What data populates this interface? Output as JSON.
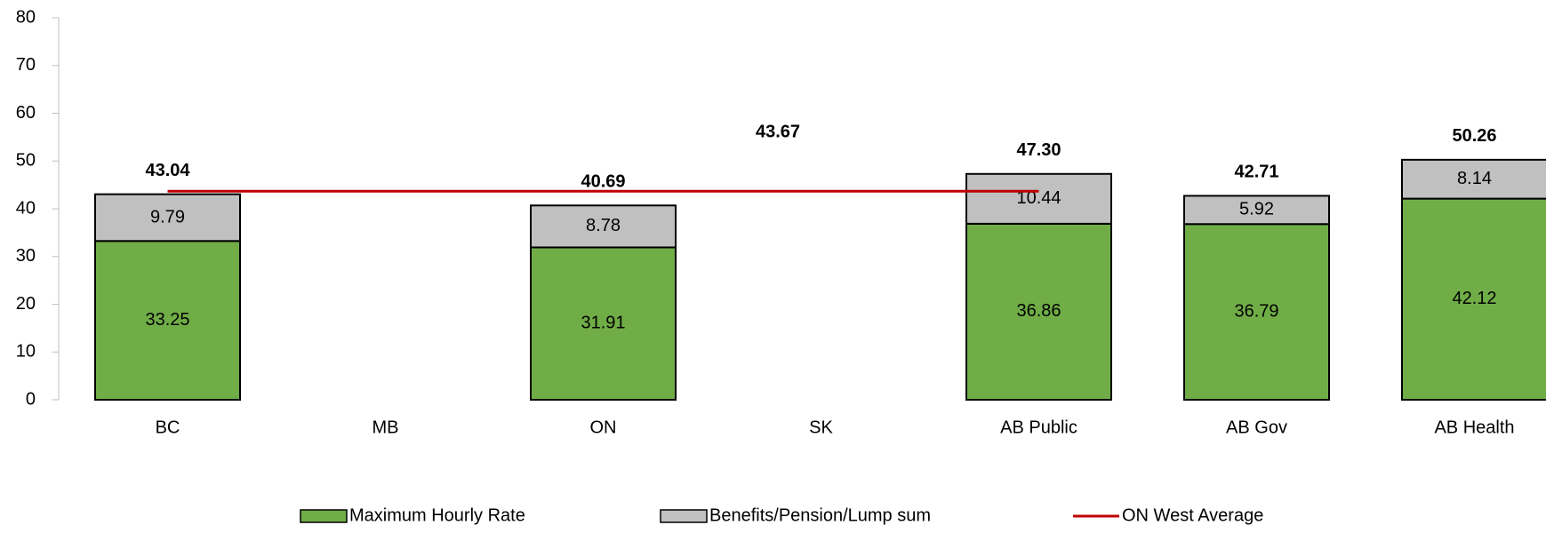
{
  "chart_data": {
    "type": "bar",
    "stacked": true,
    "categories": [
      "BC",
      "MB",
      "ON",
      "SK",
      "AB Public",
      "AB Gov",
      "AB Health"
    ],
    "series": [
      {
        "name": "Maximum Hourly Rate",
        "color": "#70ad47",
        "values": [
          33.25,
          null,
          31.91,
          null,
          36.86,
          36.79,
          42.12
        ]
      },
      {
        "name": "Benefits/Pension/Lump sum",
        "color": "#c0c0c0",
        "values": [
          9.79,
          null,
          8.78,
          null,
          10.44,
          5.92,
          8.14
        ]
      },
      {
        "name": "ON West Average",
        "color": "#c00000",
        "type": "line",
        "values": [
          43.67,
          43.67,
          43.67,
          43.67,
          43.67,
          null,
          null
        ]
      }
    ],
    "total_labels": [
      "43.04",
      null,
      "40.69",
      null,
      "47.30",
      "42.71",
      "50.26"
    ],
    "ylim": [
      0,
      80
    ],
    "yticks": [
      0,
      10,
      20,
      30,
      40,
      50,
      60,
      70,
      80
    ],
    "grid": false,
    "legend": "bottom"
  }
}
